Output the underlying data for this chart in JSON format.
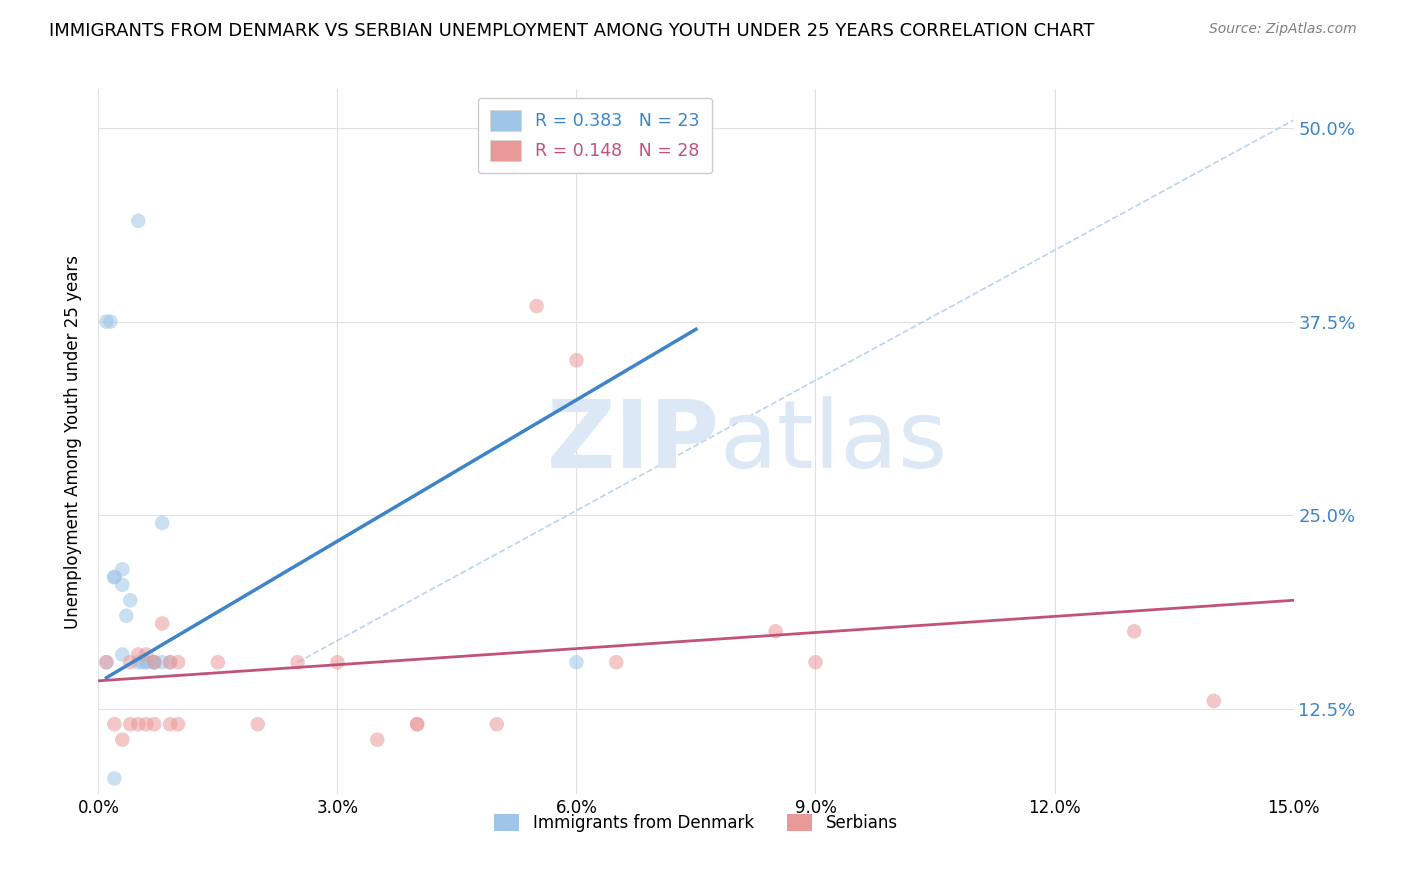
{
  "title": "IMMIGRANTS FROM DENMARK VS SERBIAN UNEMPLOYMENT AMONG YOUTH UNDER 25 YEARS CORRELATION CHART",
  "source": "Source: ZipAtlas.com",
  "ylabel": "Unemployment Among Youth under 25 years",
  "xlim": [
    0.0,
    0.15
  ],
  "ylim": [
    0.07,
    0.525
  ],
  "y_tick_vals": [
    0.125,
    0.25,
    0.375,
    0.5
  ],
  "y_tick_labels": [
    "12.5%",
    "25.0%",
    "37.5%",
    "50.0%"
  ],
  "x_tick_vals": [
    0.0,
    0.03,
    0.06,
    0.09,
    0.12,
    0.15
  ],
  "x_tick_labels": [
    "0.0%",
    "3.0%",
    "6.0%",
    "9.0%",
    "12.0%",
    "15.0%"
  ],
  "denmark_scatter_x": [
    0.005,
    0.001,
    0.0015,
    0.002,
    0.002,
    0.003,
    0.004,
    0.0035,
    0.005,
    0.006,
    0.0055,
    0.007,
    0.007,
    0.008,
    0.008,
    0.009,
    0.003,
    0.003,
    0.006,
    0.007,
    0.06,
    0.002,
    0.001
  ],
  "denmark_scatter_y": [
    0.44,
    0.375,
    0.375,
    0.21,
    0.21,
    0.16,
    0.195,
    0.185,
    0.155,
    0.155,
    0.155,
    0.155,
    0.155,
    0.155,
    0.245,
    0.155,
    0.205,
    0.215,
    0.155,
    0.155,
    0.155,
    0.08,
    0.155
  ],
  "serbian_scatter_x": [
    0.001,
    0.002,
    0.003,
    0.004,
    0.004,
    0.005,
    0.005,
    0.006,
    0.006,
    0.007,
    0.007,
    0.008,
    0.009,
    0.009,
    0.01,
    0.01,
    0.015,
    0.02,
    0.025,
    0.03,
    0.035,
    0.04,
    0.04,
    0.05,
    0.055,
    0.06,
    0.065,
    0.085,
    0.09,
    0.13,
    0.14
  ],
  "serbian_scatter_y": [
    0.155,
    0.115,
    0.105,
    0.115,
    0.155,
    0.16,
    0.115,
    0.16,
    0.115,
    0.115,
    0.155,
    0.18,
    0.115,
    0.155,
    0.115,
    0.155,
    0.155,
    0.115,
    0.155,
    0.155,
    0.105,
    0.115,
    0.115,
    0.115,
    0.385,
    0.35,
    0.155,
    0.175,
    0.155,
    0.175,
    0.13
  ],
  "denmark_line_x": [
    0.001,
    0.075
  ],
  "denmark_line_y": [
    0.145,
    0.37
  ],
  "serbian_line_x": [
    0.0,
    0.15
  ],
  "serbian_line_y": [
    0.143,
    0.195
  ],
  "diagonal_line_x": [
    0.025,
    0.15
  ],
  "diagonal_line_y": [
    0.155,
    0.505
  ],
  "denmark_color": "#9fc5e8",
  "serbian_color": "#ea9999",
  "denmark_line_color": "#3d85c8",
  "serbian_line_color": "#c2527a",
  "diagonal_color": "#b8d4ee",
  "watermark_zip": "ZIP",
  "watermark_atlas": "atlas",
  "watermark_color": "#dce8f5",
  "background_color": "#ffffff",
  "grid_color": "#e0e0e0",
  "title_fontsize": 13,
  "marker_size": 110,
  "marker_alpha": 0.55
}
